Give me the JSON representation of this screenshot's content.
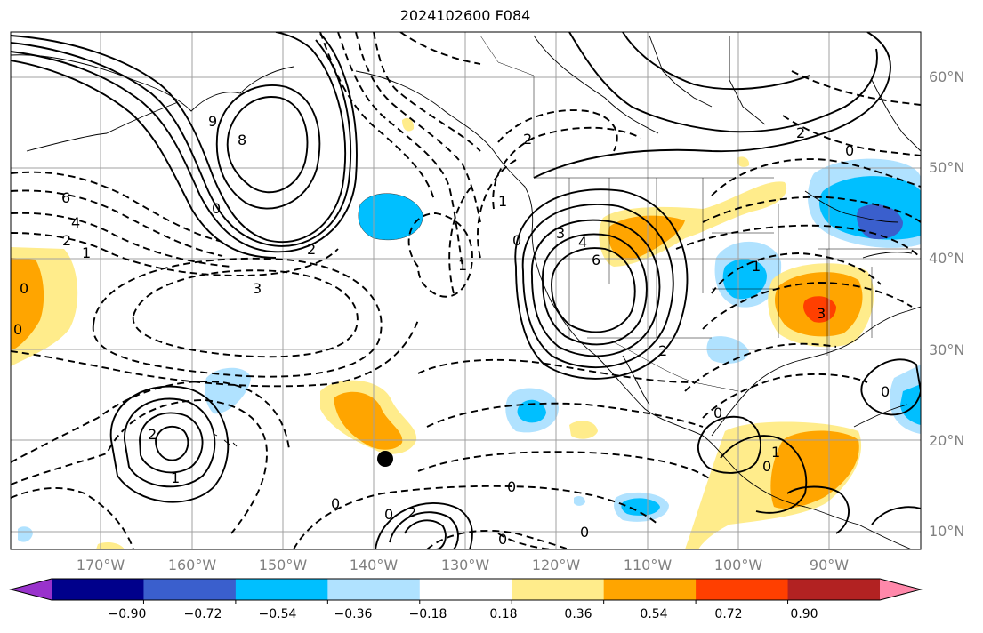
{
  "title": "2024102600 F084",
  "lat_labels": [
    "60°N",
    "50°N",
    "40°N",
    "30°N",
    "20°N",
    "10°N"
  ],
  "lon_labels": [
    "170°W",
    "160°W",
    "150°W",
    "140°W",
    "130°W",
    "120°W",
    "110°W",
    "100°W",
    "90°W"
  ],
  "colorbar": {
    "colors": [
      "#9932cc",
      "#00008b",
      "#3a5fcd",
      "#00bfff",
      "#b0e2ff",
      "#ffffff",
      "#ffec8b",
      "#ffa500",
      "#ff3f00",
      "#b22222",
      "#ff88aa"
    ],
    "labels": [
      "−0.90",
      "−0.72",
      "−0.54",
      "−0.36",
      "−0.18",
      "0.18",
      "0.36",
      "0.54",
      "0.72",
      "0.90"
    ]
  },
  "contour_labels": [
    "6",
    "4",
    "2",
    "1",
    "8",
    "9",
    "2",
    "3",
    "0",
    "0",
    "2",
    "1",
    "3",
    "4",
    "6",
    "2",
    "0",
    "1",
    "0",
    "0",
    "2",
    "0",
    "0",
    "1",
    "2",
    "0",
    "0",
    "1",
    "0",
    "3",
    "0",
    "2",
    "0",
    "1",
    "0"
  ],
  "colors": {
    "land_line": "#000000",
    "grid": "#a0a0a0",
    "ocean": "#ffffff"
  }
}
